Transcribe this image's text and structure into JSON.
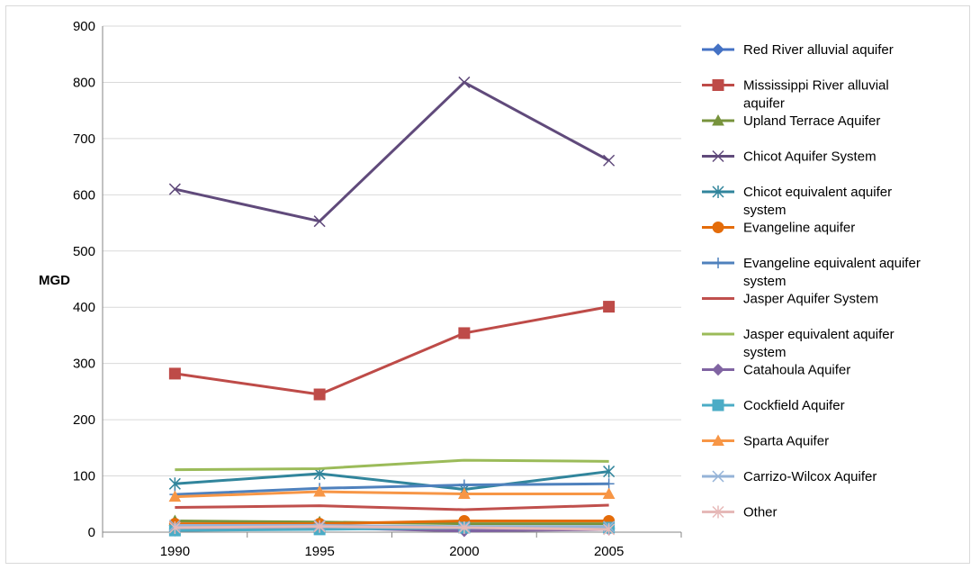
{
  "chart_data": {
    "type": "line",
    "title": "",
    "xlabel": "",
    "ylabel": "MGD",
    "categories": [
      "1990",
      "1995",
      "2000",
      "2005"
    ],
    "ylim": [
      0,
      900
    ],
    "yticks": [
      "0",
      "100",
      "200",
      "300",
      "400",
      "500",
      "600",
      "700",
      "800",
      "900"
    ],
    "grid": "horizontal",
    "legend": "right",
    "series": [
      {
        "name": "Red River alluvial aquifer",
        "color": "#4472C4",
        "marker": "diamond",
        "values": [
          5,
          10,
          5,
          8
        ]
      },
      {
        "name": "Mississippi River alluvial aquifer",
        "color": "#BE4B48",
        "marker": "square",
        "values": [
          282,
          245,
          354,
          401
        ]
      },
      {
        "name": "Upland Terrace Aquifer",
        "color": "#77933C",
        "marker": "triangle",
        "values": [
          20,
          18,
          15,
          15
        ]
      },
      {
        "name": "Chicot Aquifer System",
        "color": "#604A7B",
        "marker": "x",
        "values": [
          610,
          553,
          800,
          661
        ]
      },
      {
        "name": "Chicot equivalent aquifer system",
        "color": "#31859C",
        "marker": "star",
        "values": [
          86,
          104,
          76,
          108
        ]
      },
      {
        "name": "Evangeline aquifer",
        "color": "#E46C0A",
        "marker": "circle",
        "values": [
          15,
          15,
          20,
          20
        ]
      },
      {
        "name": "Evangeline equivalent aquifer system",
        "color": "#4F81BD",
        "marker": "plus",
        "values": [
          67,
          78,
          84,
          86
        ]
      },
      {
        "name": "Jasper Aquifer System",
        "color": "#C0504D",
        "marker": "none",
        "values": [
          44,
          47,
          40,
          48
        ]
      },
      {
        "name": "Jasper equivalent aquifer system",
        "color": "#9BBB59",
        "marker": "none",
        "values": [
          111,
          113,
          128,
          126
        ]
      },
      {
        "name": "Catahoula Aquifer",
        "color": "#8064A2",
        "marker": "diamond",
        "values": [
          3,
          8,
          2,
          5
        ]
      },
      {
        "name": "Cockfield Aquifer",
        "color": "#4BACC6",
        "marker": "square",
        "values": [
          3,
          5,
          8,
          8
        ]
      },
      {
        "name": "Sparta Aquifer",
        "color": "#F79646",
        "marker": "triangle",
        "values": [
          63,
          72,
          68,
          68
        ]
      },
      {
        "name": "Carrizo-Wilcox Aquifer",
        "color": "#95B3D7",
        "marker": "x",
        "values": [
          12,
          12,
          10,
          10
        ]
      },
      {
        "name": "Other",
        "color": "#E6B9B8",
        "marker": "star",
        "values": [
          8,
          10,
          8,
          5
        ]
      }
    ]
  }
}
